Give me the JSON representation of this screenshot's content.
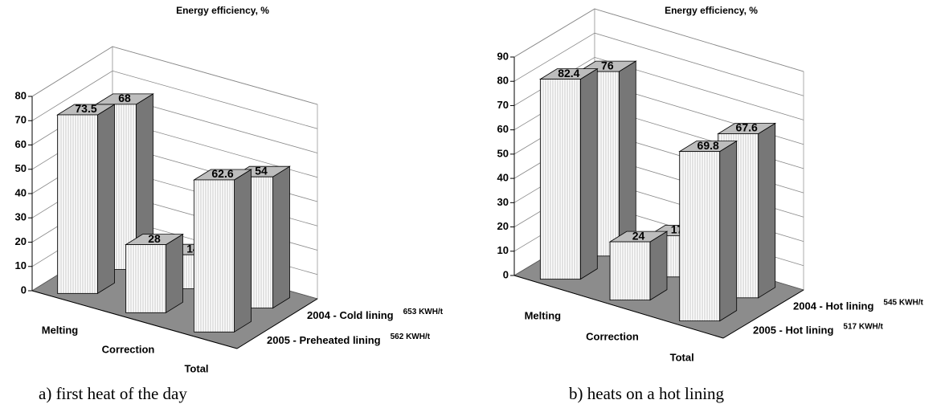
{
  "chart_data": [
    {
      "type": "bar",
      "title": "Energy efficiency, %",
      "caption": "a)  first heat of the day",
      "categories": [
        "Melting",
        "Correction",
        "Total"
      ],
      "series": [
        {
          "name": "2004 - Cold lining",
          "energy": "653 KWH/t",
          "color": "#ffffff",
          "values": [
            68,
            14,
            54
          ]
        },
        {
          "name": "2005 - Preheated lining",
          "energy": "562 KWH/t",
          "color": "#ffffff",
          "values": [
            73.5,
            28,
            62.6
          ]
        }
      ],
      "ylim": [
        0,
        80
      ],
      "yticks": [
        0,
        10,
        20,
        30,
        40,
        50,
        60,
        70,
        80
      ],
      "grid": true
    },
    {
      "type": "bar",
      "title": "Energy efficiency, %",
      "caption": "b) heats on a hot lining",
      "categories": [
        "Melting",
        "Correction",
        "Total"
      ],
      "series": [
        {
          "name": "2004 - Hot lining",
          "energy": "545 KWH/t",
          "color": "#ffffff",
          "values": [
            76,
            17,
            67.6
          ]
        },
        {
          "name": "2005 - Hot lining",
          "energy": "517 KWH/t",
          "color": "#ffffff",
          "values": [
            82.4,
            24,
            69.8
          ]
        }
      ],
      "ylim": [
        0,
        90
      ],
      "yticks": [
        0,
        10,
        20,
        30,
        40,
        50,
        60,
        70,
        80,
        90
      ],
      "grid": true
    }
  ]
}
